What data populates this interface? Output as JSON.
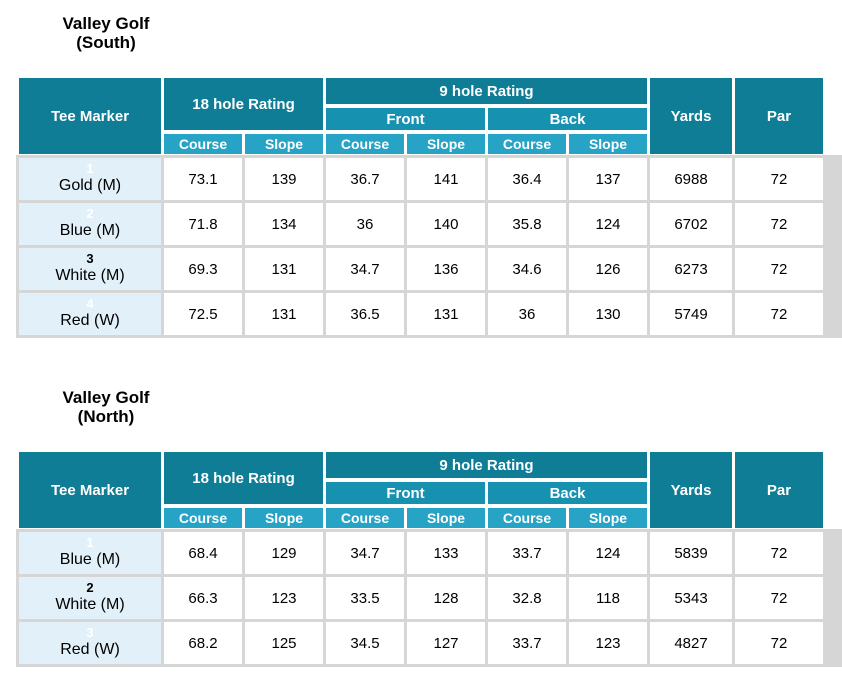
{
  "colors": {
    "header_dark": "#0f7d96",
    "header_mid": "#1791b0",
    "header_light": "#27a3c6",
    "tee_cell_bg": "#e2f1f9",
    "frame_gray": "#d6d6d6",
    "header_text": "#ffffff"
  },
  "header": {
    "tee_marker": "Tee Marker",
    "rating_18": "18 hole Rating",
    "rating_9": "9 hole Rating",
    "front": "Front",
    "back": "Back",
    "course": "Course",
    "slope": "Slope",
    "yards": "Yards",
    "par": "Par"
  },
  "tables": [
    {
      "title": [
        "Valley Golf",
        "(South)"
      ],
      "rows": [
        {
          "number": "1",
          "number_tone": "light",
          "name": "Gold (M)",
          "values": [
            "73.1",
            "139",
            "36.7",
            "141",
            "36.4",
            "137",
            "6988",
            "72"
          ]
        },
        {
          "number": "2",
          "number_tone": "light",
          "name": "Blue (M)",
          "values": [
            "71.8",
            "134",
            "36",
            "140",
            "35.8",
            "124",
            "6702",
            "72"
          ]
        },
        {
          "number": "3",
          "number_tone": "dark",
          "name": "White (M)",
          "values": [
            "69.3",
            "131",
            "34.7",
            "136",
            "34.6",
            "126",
            "6273",
            "72"
          ]
        },
        {
          "number": "4",
          "number_tone": "light",
          "name": "Red (W)",
          "values": [
            "72.5",
            "131",
            "36.5",
            "131",
            "36",
            "130",
            "5749",
            "72"
          ]
        }
      ]
    },
    {
      "title": [
        "Valley Golf",
        "(North)"
      ],
      "rows": [
        {
          "number": "1",
          "number_tone": "light",
          "name": "Blue (M)",
          "values": [
            "68.4",
            "129",
            "34.7",
            "133",
            "33.7",
            "124",
            "5839",
            "72"
          ]
        },
        {
          "number": "2",
          "number_tone": "dark",
          "name": "White (M)",
          "values": [
            "66.3",
            "123",
            "33.5",
            "128",
            "32.8",
            "118",
            "5343",
            "72"
          ]
        },
        {
          "number": "3",
          "number_tone": "light",
          "name": "Red (W)",
          "values": [
            "68.2",
            "125",
            "34.5",
            "127",
            "33.7",
            "123",
            "4827",
            "72"
          ]
        }
      ]
    }
  ]
}
